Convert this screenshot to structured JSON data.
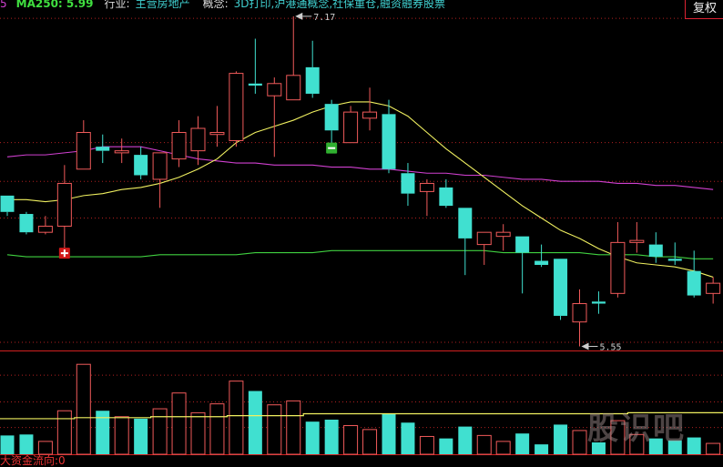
{
  "header": {
    "prev_fragment": "5",
    "ma250": "MA250: 5.99",
    "industry_label": "行业:",
    "industry_value": "主营房地产",
    "concept_label": "概念:",
    "concept_value": "3D打印,沪港通概念,社保重仓,融资融券股票"
  },
  "adjust_button": "复权",
  "footer_text": "大资金流向:0",
  "watermark": "股识吧",
  "colors": {
    "up": "#f05a5a",
    "down": "#40e0d0",
    "ma_short": "#f0f060",
    "ma_mid": "#d040d0",
    "ma250": "#40d040",
    "grid": "#b02020",
    "vol_ma": "#f0f060"
  },
  "chart_data": [
    {
      "type": "candlestick",
      "ylim": [
        5.53,
        7.25
      ],
      "gridlines": [
        7.16,
        6.55,
        6.36,
        6.18,
        5.57
      ],
      "annotations": {
        "high_label": "7.17",
        "high_value": 7.17,
        "high_index": 15,
        "low_label": "5.55",
        "low_value": 5.55,
        "low_index": 30,
        "buy_marker_index": 3,
        "sell_marker_index": 17
      },
      "ohlc": [
        [
          6.29,
          6.29,
          6.19,
          6.21
        ],
        [
          6.2,
          6.21,
          6.1,
          6.11
        ],
        [
          6.11,
          6.19,
          6.1,
          6.14
        ],
        [
          6.14,
          6.44,
          6.03,
          6.35
        ],
        [
          6.42,
          6.66,
          6.42,
          6.6
        ],
        [
          6.53,
          6.59,
          6.45,
          6.51
        ],
        [
          6.5,
          6.57,
          6.45,
          6.51
        ],
        [
          6.49,
          6.53,
          6.37,
          6.39
        ],
        [
          6.37,
          6.5,
          6.23,
          6.5
        ],
        [
          6.47,
          6.66,
          6.43,
          6.6
        ],
        [
          6.51,
          6.68,
          6.44,
          6.62
        ],
        [
          6.59,
          6.73,
          6.53,
          6.6
        ],
        [
          6.56,
          6.9,
          6.53,
          6.89
        ],
        [
          6.84,
          7.06,
          6.79,
          6.83
        ],
        [
          6.78,
          6.87,
          6.48,
          6.84
        ],
        [
          6.76,
          7.17,
          6.76,
          6.88
        ],
        [
          6.92,
          7.05,
          6.77,
          6.79
        ],
        [
          6.74,
          6.76,
          6.55,
          6.61
        ],
        [
          6.55,
          6.73,
          6.55,
          6.7
        ],
        [
          6.67,
          6.82,
          6.61,
          6.7
        ],
        [
          6.69,
          6.76,
          6.4,
          6.42
        ],
        [
          6.4,
          6.45,
          6.24,
          6.3
        ],
        [
          6.31,
          6.37,
          6.19,
          6.35
        ],
        [
          6.33,
          6.37,
          6.23,
          6.24
        ],
        [
          6.23,
          6.23,
          5.9,
          6.08
        ],
        [
          6.05,
          6.11,
          5.95,
          6.11
        ],
        [
          6.09,
          6.15,
          6.02,
          6.11
        ],
        [
          6.09,
          6.09,
          5.81,
          6.01
        ],
        [
          5.97,
          6.05,
          5.94,
          5.95
        ],
        [
          5.98,
          5.98,
          5.68,
          5.7
        ],
        [
          5.67,
          5.83,
          5.55,
          5.76
        ],
        [
          5.77,
          5.82,
          5.71,
          5.76
        ],
        [
          5.81,
          6.16,
          5.79,
          6.06
        ],
        [
          6.06,
          6.16,
          6.01,
          6.07
        ],
        [
          6.05,
          6.11,
          5.96,
          5.99
        ],
        [
          5.98,
          6.06,
          5.95,
          5.97
        ],
        [
          5.92,
          6.02,
          5.79,
          5.8
        ],
        [
          5.81,
          5.89,
          5.76,
          5.86
        ]
      ],
      "ma_short": [
        6.27,
        6.27,
        6.26,
        6.27,
        6.29,
        6.3,
        6.32,
        6.33,
        6.35,
        6.38,
        6.42,
        6.47,
        6.55,
        6.6,
        6.63,
        6.66,
        6.7,
        6.73,
        6.75,
        6.75,
        6.73,
        6.68,
        6.6,
        6.52,
        6.45,
        6.38,
        6.31,
        6.24,
        6.18,
        6.12,
        6.08,
        6.03,
        5.99,
        5.96,
        5.95,
        5.94,
        5.92,
        5.89
      ],
      "ma_mid": [
        6.48,
        6.49,
        6.49,
        6.5,
        6.51,
        6.53,
        6.53,
        6.53,
        6.51,
        6.49,
        6.47,
        6.46,
        6.45,
        6.45,
        6.44,
        6.44,
        6.44,
        6.43,
        6.43,
        6.42,
        6.42,
        6.41,
        6.4,
        6.4,
        6.39,
        6.39,
        6.38,
        6.37,
        6.37,
        6.36,
        6.36,
        6.36,
        6.35,
        6.35,
        6.34,
        6.34,
        6.33,
        6.32
      ],
      "ma250": [
        6.0,
        5.99,
        5.99,
        5.99,
        5.99,
        5.99,
        5.99,
        5.99,
        6.0,
        6.0,
        6.0,
        6.0,
        6.0,
        6.01,
        6.01,
        6.01,
        6.01,
        6.02,
        6.02,
        6.02,
        6.02,
        6.02,
        6.02,
        6.02,
        6.02,
        6.02,
        6.01,
        6.01,
        6.01,
        6.01,
        6.01,
        6.0,
        6.0,
        6.0,
        5.99,
        5.99,
        5.98,
        5.98
      ]
    },
    {
      "type": "bar",
      "ylim": [
        0,
        105
      ],
      "gridlines": [
        27,
        53,
        80
      ],
      "volume": [
        19,
        20,
        13,
        44,
        91,
        44,
        38,
        36,
        46,
        62,
        42,
        51,
        74,
        64,
        50,
        54,
        33,
        35,
        29,
        25,
        41,
        32,
        18,
        16,
        28,
        19,
        13,
        21,
        10,
        30,
        24,
        12,
        34,
        20,
        16,
        14,
        17,
        11
      ],
      "volume_ma": [
        36,
        36,
        36,
        36,
        37,
        37,
        37,
        37,
        38,
        38,
        38,
        38,
        39,
        39,
        39,
        39,
        41,
        41,
        41,
        41,
        41,
        41,
        41,
        41,
        41,
        41,
        41,
        41,
        41,
        41,
        41,
        41,
        41,
        42,
        42,
        42,
        42,
        42
      ]
    }
  ]
}
